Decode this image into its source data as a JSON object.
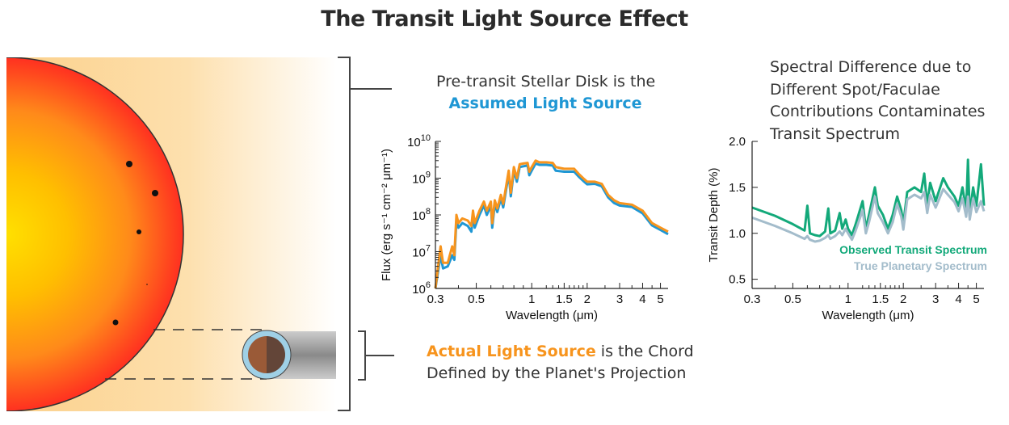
{
  "title": "The Transit Light Source Effect",
  "captions": {
    "pre_transit_line1": "Pre-transit Stellar Disk is the",
    "assumed_light_source": "Assumed Light Source",
    "actual_light_source": "Actual Light Source",
    "actual_rest_line1": " is the Chord",
    "actual_line2": "Defined by the Planet's Projection",
    "right_lines": [
      "Spectral Difference due to",
      "Different Spot/Faculae",
      "Contributions Contaminates",
      "Transit Spectrum"
    ]
  },
  "colors": {
    "assumed": "#1f97d4",
    "actual": "#f7941d",
    "observed": "#13a97a",
    "true": "#a3bccb"
  },
  "chart_data": [
    {
      "type": "line",
      "xlabel": "Wavelength (μm)",
      "ylabel": "Flux (erg s⁻¹ cm⁻² μm⁻¹)",
      "x_scale": "log",
      "y_scale": "log",
      "xlim": [
        0.3,
        5.5
      ],
      "ylim": [
        1000000.0,
        10000000000.0
      ],
      "x_ticks": [
        "0.3",
        "0.5",
        "1",
        "1.5",
        "2",
        "3",
        "4",
        "5"
      ],
      "y_ticks": [
        "10^6",
        "10^7",
        "10^8",
        "10^9",
        "10^10"
      ],
      "x": [
        0.3,
        0.32,
        0.33,
        0.35,
        0.37,
        0.38,
        0.39,
        0.4,
        0.42,
        0.45,
        0.47,
        0.48,
        0.49,
        0.52,
        0.55,
        0.57,
        0.6,
        0.61,
        0.63,
        0.65,
        0.68,
        0.7,
        0.75,
        0.77,
        0.8,
        0.83,
        0.86,
        0.9,
        0.95,
        0.97,
        1.0,
        1.05,
        1.1,
        1.2,
        1.3,
        1.35,
        1.5,
        1.7,
        1.8,
        1.9,
        2.0,
        2.2,
        2.4,
        2.6,
        2.8,
        3.0,
        3.5,
        4.0,
        4.5,
        5.0,
        5.5
      ],
      "series": [
        {
          "color": "#1f97d4",
          "values": [
            800000.0,
            8000000.0,
            3500000.0,
            4000000.0,
            8000000.0,
            6000000.0,
            70000000.0,
            45000000.0,
            60000000.0,
            50000000.0,
            35000000.0,
            100000000.0,
            45000000.0,
            100000000.0,
            180000000.0,
            100000000.0,
            180000000.0,
            45000000.0,
            200000000.0,
            120000000.0,
            280000000.0,
            160000000.0,
            1300000000.0,
            320000000.0,
            1600000000.0,
            800000000.0,
            2000000000.0,
            2100000000.0,
            2200000000.0,
            1200000000.0,
            1600000000.0,
            2500000000.0,
            2300000000.0,
            2300000000.0,
            2200000000.0,
            1600000000.0,
            1500000000.0,
            1500000000.0,
            1100000000.0,
            850000000.0,
            680000000.0,
            700000000.0,
            600000000.0,
            300000000.0,
            210000000.0,
            180000000.0,
            165000000.0,
            110000000.0,
            52000000.0,
            39000000.0,
            30000000.0
          ]
        },
        {
          "color": "#f7941d",
          "values": [
            1000000.0,
            14000000.0,
            5000000.0,
            5000000.0,
            14000000.0,
            8000000.0,
            100000000.0,
            60000000.0,
            80000000.0,
            70000000.0,
            50000000.0,
            130000000.0,
            60000000.0,
            130000000.0,
            230000000.0,
            130000000.0,
            230000000.0,
            60000000.0,
            250000000.0,
            150000000.0,
            350000000.0,
            200000000.0,
            1600000000.0,
            400000000.0,
            2000000000.0,
            1000000000.0,
            2400000000.0,
            2500000000.0,
            2600000000.0,
            1500000000.0,
            2000000000.0,
            3000000000.0,
            2700000000.0,
            2700000000.0,
            2600000000.0,
            2000000000.0,
            1800000000.0,
            1800000000.0,
            1300000000.0,
            1000000000.0,
            800000000.0,
            800000000.0,
            700000000.0,
            350000000.0,
            250000000.0,
            210000000.0,
            190000000.0,
            130000000.0,
            60000000.0,
            45000000.0,
            35000000.0
          ]
        }
      ]
    },
    {
      "type": "line",
      "xlabel": "Wavelength (μm)",
      "ylabel": "Transit Depth (%)",
      "x_scale": "log",
      "xlim": [
        0.3,
        5.5
      ],
      "ylim": [
        0.4,
        2.0
      ],
      "x_ticks": [
        "0.3",
        "0.5",
        "1",
        "1.5",
        "2",
        "3",
        "4",
        "5"
      ],
      "y_ticks": [
        "0.5",
        "1.0",
        "1.5",
        "2.0"
      ],
      "legend_position": "bottom-right",
      "x": [
        0.3,
        0.4,
        0.5,
        0.58,
        0.6,
        0.62,
        0.66,
        0.7,
        0.75,
        0.78,
        0.8,
        0.85,
        0.9,
        0.93,
        0.97,
        1.0,
        1.05,
        1.1,
        1.2,
        1.25,
        1.3,
        1.4,
        1.45,
        1.55,
        1.65,
        1.75,
        1.85,
        1.95,
        2.0,
        2.1,
        2.3,
        2.5,
        2.6,
        2.7,
        2.8,
        3.0,
        3.3,
        3.5,
        3.8,
        4.0,
        4.2,
        4.4,
        4.5,
        4.6,
        4.8,
        5.0,
        5.3,
        5.5
      ],
      "series": [
        {
          "name": "Observed Transit Spectrum",
          "color": "#13a97a",
          "values": [
            1.28,
            1.19,
            1.1,
            1.03,
            1.3,
            1.0,
            0.98,
            0.97,
            1.02,
            1.27,
            1.0,
            1.03,
            1.22,
            1.05,
            1.15,
            1.05,
            0.98,
            1.1,
            1.35,
            1.05,
            1.2,
            1.5,
            1.3,
            1.2,
            1.05,
            1.2,
            1.4,
            1.25,
            1.1,
            1.45,
            1.5,
            1.45,
            1.65,
            1.3,
            1.55,
            1.35,
            1.6,
            1.5,
            1.4,
            1.3,
            1.5,
            1.25,
            1.8,
            1.2,
            1.5,
            1.3,
            1.75,
            1.3
          ]
        },
        {
          "name": "True Planetary Spectrum",
          "color": "#a3bccb",
          "values": [
            1.17,
            1.08,
            1.0,
            0.94,
            0.97,
            0.93,
            0.91,
            0.92,
            0.95,
            0.98,
            0.94,
            0.97,
            1.02,
            0.98,
            1.05,
            1.0,
            0.93,
            1.03,
            1.25,
            1.0,
            1.12,
            1.4,
            1.22,
            1.12,
            1.0,
            1.12,
            1.32,
            1.18,
            1.04,
            1.37,
            1.42,
            1.38,
            1.45,
            1.22,
            1.42,
            1.28,
            1.48,
            1.42,
            1.34,
            1.24,
            1.38,
            1.18,
            1.4,
            1.15,
            1.38,
            1.23,
            1.35,
            1.24
          ]
        }
      ]
    }
  ]
}
